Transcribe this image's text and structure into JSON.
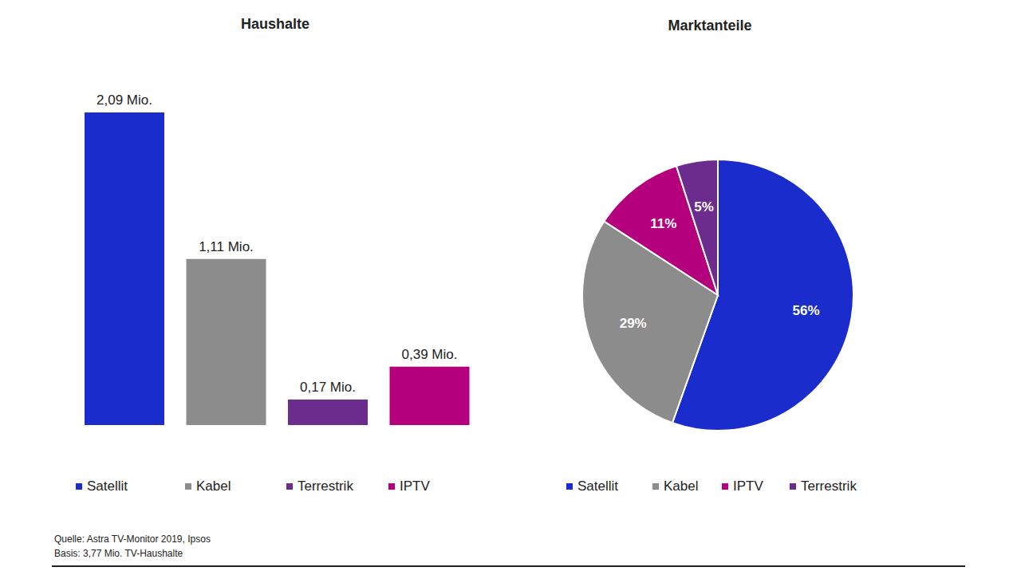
{
  "chart_data": [
    {
      "type": "bar",
      "title": "Haushalte",
      "categories": [
        "Satellit",
        "Kabel",
        "Terrestrik",
        "IPTV"
      ],
      "values": [
        2.09,
        1.11,
        0.17,
        0.39
      ],
      "value_labels": [
        "2,09 Mio.",
        "1,11 Mio.",
        "0,17 Mio.",
        "0,39 Mio."
      ],
      "colors": [
        "#1a2ccc",
        "#8c8c8c",
        "#6b2c8e",
        "#b4007d"
      ],
      "ylim": [
        0,
        2.09
      ],
      "data_labels": true,
      "tick_labels": false,
      "legend": "bottom"
    },
    {
      "type": "pie",
      "title": "Marktanteile",
      "categories": [
        "Satellit",
        "Kabel",
        "IPTV",
        "Terrestrik"
      ],
      "values": [
        56,
        29,
        11,
        5
      ],
      "value_labels": [
        "56%",
        "29%",
        "11%",
        "5%"
      ],
      "colors": [
        "#1a2ccc",
        "#8c8c8c",
        "#b4007d",
        "#6b2c8e"
      ],
      "data_labels": true,
      "legend": "bottom"
    }
  ],
  "footer": [
    "Quelle: Astra TV-Monitor 2019, Ipsos",
    "Basis: 3,77 Mio. TV-Haushalte"
  ]
}
